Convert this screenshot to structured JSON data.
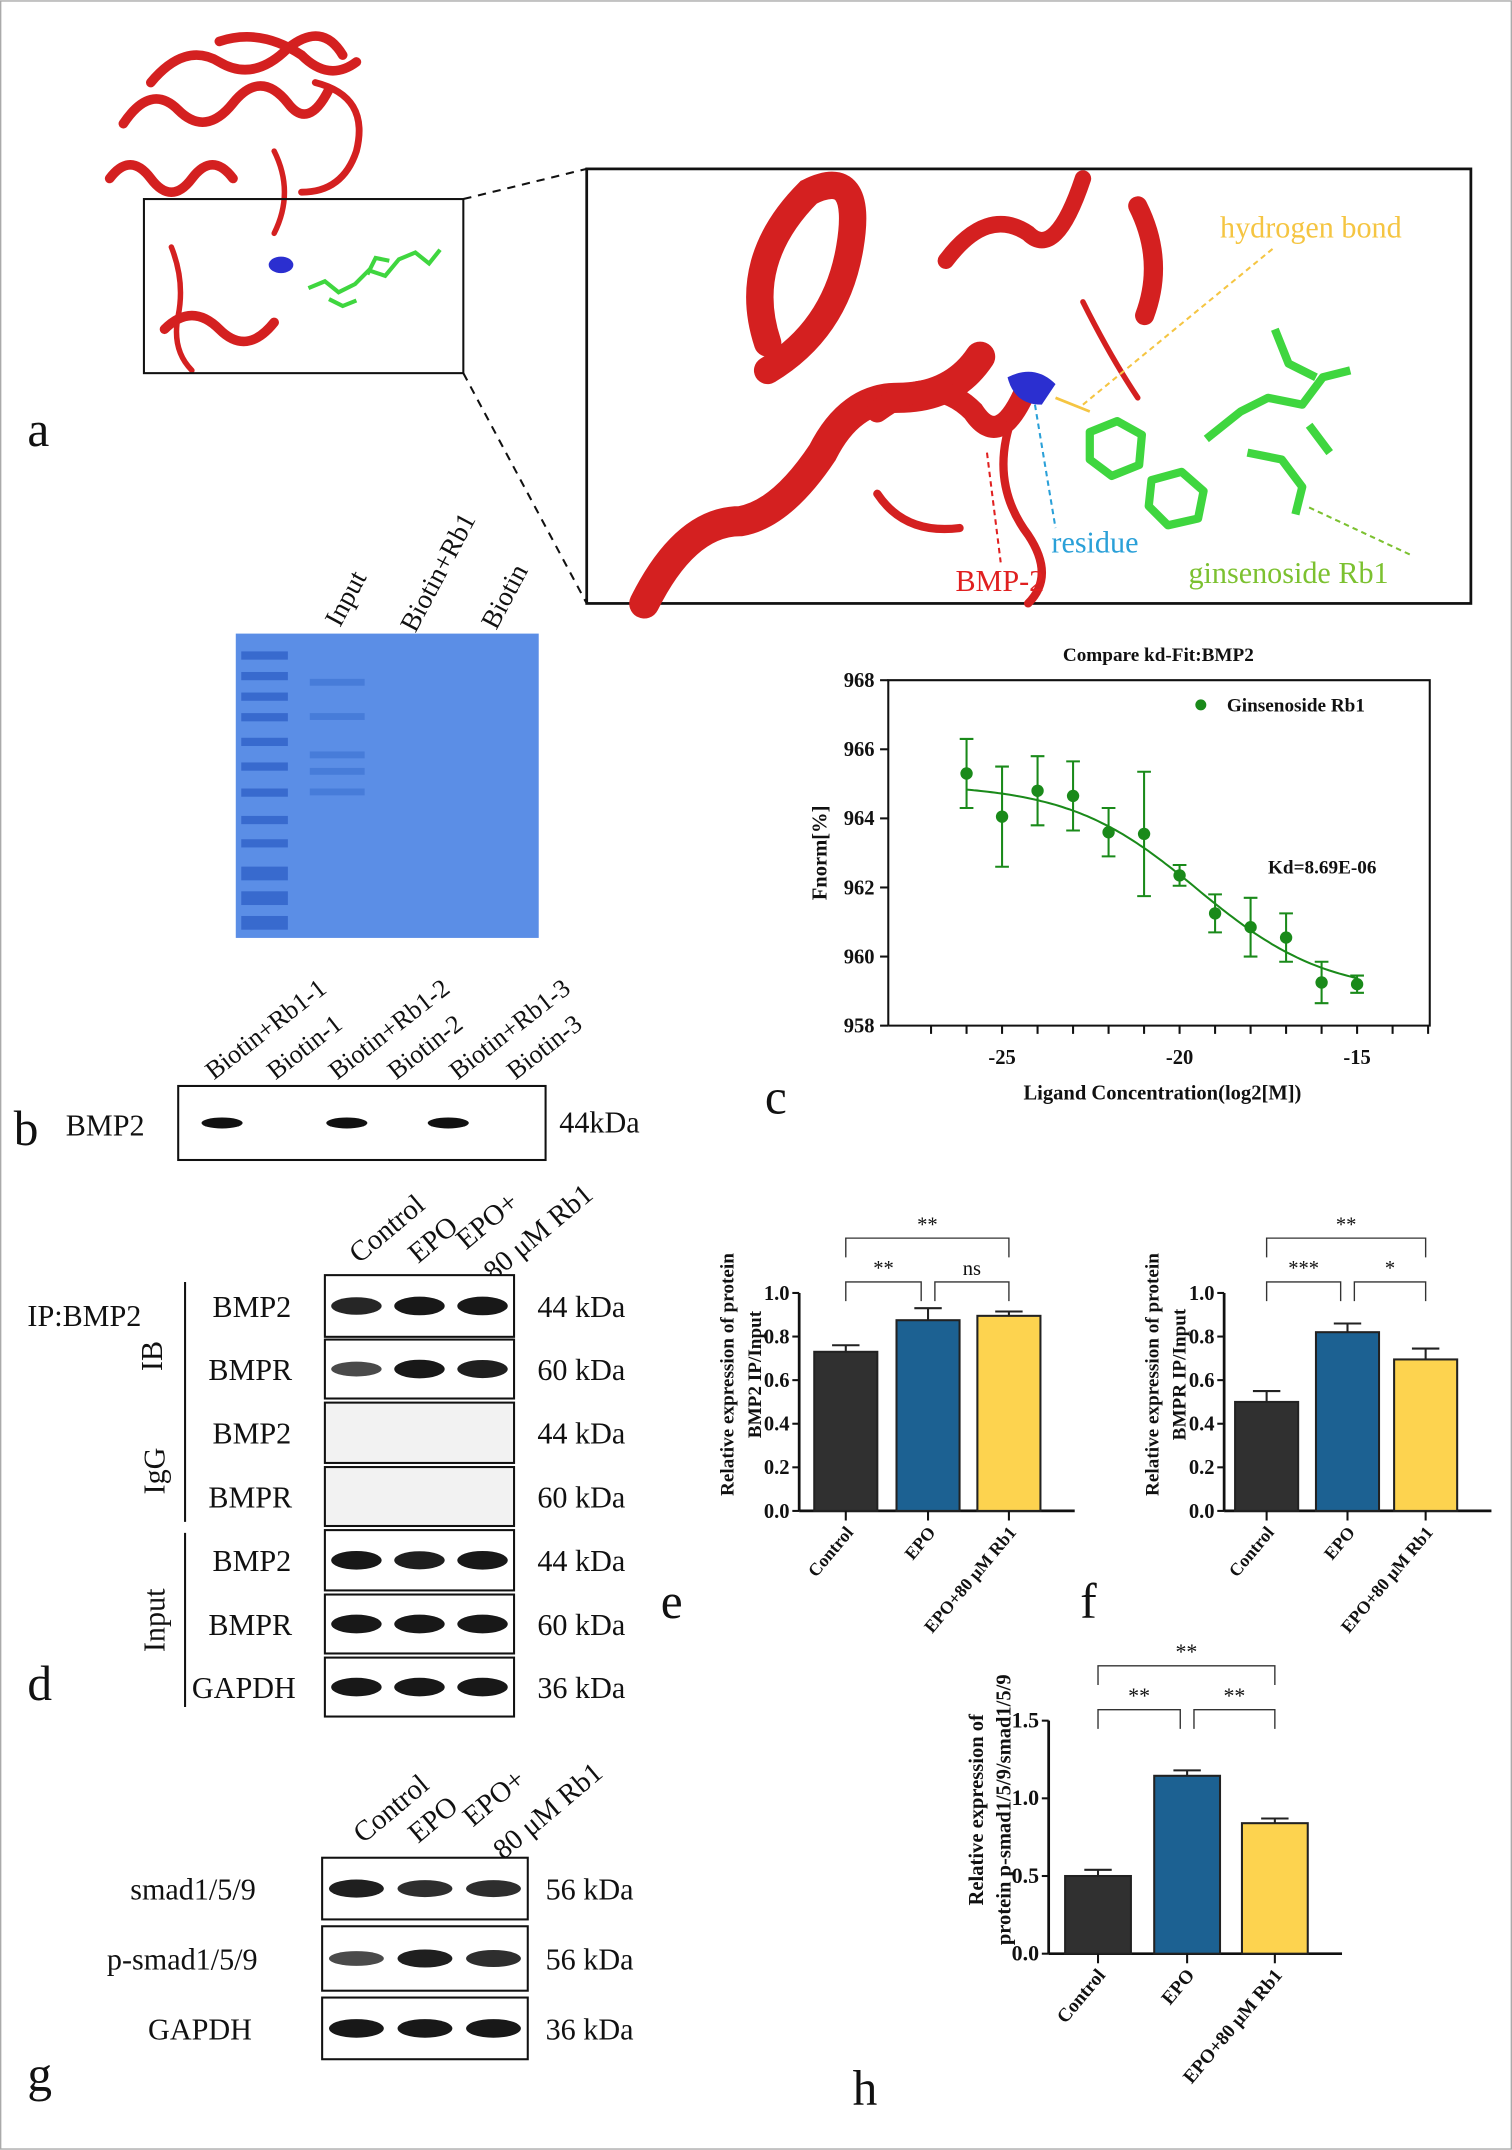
{
  "panels": {
    "a": "a",
    "b": "b",
    "c": "c",
    "d": "d",
    "e": "e",
    "f": "f",
    "g": "g",
    "h": "h"
  },
  "panel_a": {
    "labels": {
      "hbond": "hydrogen bond",
      "residue": "residue",
      "protein": "BMP-2",
      "ligand": "ginsenoside Rb1"
    },
    "colors": {
      "protein": "#d42020",
      "residue": "#2b2fd0",
      "ligand": "#3fd63f",
      "hbond": "#f5c542",
      "residue_label": "#2aa0d8",
      "ligand_label": "#7cc130"
    }
  },
  "gel": {
    "lanes": [
      "Input",
      "Biotin+Rb1",
      "Biotin"
    ],
    "color": "#5b8ee6"
  },
  "panel_b": {
    "lanes": [
      "Biotin+Rb1-1",
      "Biotin-1",
      "Biotin+Rb1-2",
      "Biotin-2",
      "Biotin+Rb1-3",
      "Biotin-3"
    ],
    "protein": "BMP2",
    "kda": "44kDa",
    "bands": [
      1,
      0,
      1,
      0,
      1,
      0
    ]
  },
  "panel_d": {
    "lanes": [
      "Control",
      "EPO",
      "EPO+",
      "80 μM Rb1"
    ],
    "groups": {
      "ip": "IP:BMP2",
      "ib": "IB",
      "igg": "IgG",
      "input": "Input"
    },
    "rows": [
      {
        "protein": "BMP2",
        "kda": "44 kDa",
        "bands": [
          0.85,
          0.95,
          0.95
        ]
      },
      {
        "protein": "BMPR",
        "kda": "60 kDa",
        "bands": [
          0.6,
          0.95,
          0.9
        ]
      },
      {
        "protein": "BMP2",
        "kda": "44 kDa",
        "bands": [
          0,
          0,
          0
        ]
      },
      {
        "protein": "BMPR",
        "kda": "60 kDa",
        "bands": [
          0,
          0,
          0
        ]
      },
      {
        "protein": "BMP2",
        "kda": "44 kDa",
        "bands": [
          0.95,
          0.9,
          0.95
        ]
      },
      {
        "protein": "BMPR",
        "kda": "60 kDa",
        "bands": [
          0.95,
          0.95,
          0.95
        ]
      },
      {
        "protein": "GAPDH",
        "kda": "36 kDa",
        "bands": [
          0.95,
          0.95,
          0.95
        ]
      }
    ]
  },
  "panel_g": {
    "lanes": [
      "Control",
      "EPO",
      "EPO+",
      "80 μM Rb1"
    ],
    "rows": [
      {
        "protein": "smad1/5/9",
        "kda": "56 kDa",
        "bands": [
          0.9,
          0.8,
          0.8
        ]
      },
      {
        "protein": "p-smad1/5/9",
        "kda": "56 kDa",
        "bands": [
          0.6,
          0.9,
          0.8
        ]
      },
      {
        "protein": "GAPDH",
        "kda": "36 kDa",
        "bands": [
          0.95,
          0.95,
          0.95
        ]
      }
    ]
  },
  "chart_data": [
    {
      "id": "c",
      "type": "scatter",
      "title": "Compare kd-Fit:BMP2",
      "xlabel": "Ligand Concentration(log2[M])",
      "ylabel": "Fnorm[%]",
      "xlim": [
        -28,
        -13
      ],
      "ylim": [
        958,
        968
      ],
      "xticks": [
        -25,
        -20,
        -15
      ],
      "yticks": [
        958,
        960,
        962,
        964,
        966,
        968
      ],
      "legend": "top-right",
      "annotation": "Kd=8.69E-06",
      "color": "#1a8a1a",
      "series": [
        {
          "name": "Ginsenoside Rb1",
          "x": [
            -26,
            -25,
            -24,
            -23,
            -22,
            -21,
            -20,
            -19,
            -18,
            -17,
            -16,
            -15
          ],
          "y": [
            965.3,
            964.05,
            964.8,
            964.65,
            963.6,
            963.55,
            962.35,
            961.25,
            960.85,
            960.55,
            959.25,
            959.2
          ],
          "err": [
            1.0,
            1.45,
            1.0,
            1.0,
            0.7,
            1.8,
            0.3,
            0.55,
            0.85,
            0.7,
            0.6,
            0.25
          ]
        }
      ],
      "fit": {
        "top": 965.0,
        "bottom": 958.9,
        "mid": -19.5,
        "slope": 0.55
      }
    },
    {
      "id": "e",
      "type": "bar",
      "ylabel": [
        "Relative expression of  protein",
        "BMP2 IP/Input"
      ],
      "categories": [
        "Control",
        "EPO",
        "EPO+80 μM Rb1"
      ],
      "values": [
        0.73,
        0.875,
        0.895
      ],
      "err": [
        0.03,
        0.055,
        0.02
      ],
      "ylim": [
        0,
        1.0
      ],
      "yticks": [
        "0.0",
        "0.2",
        "0.4",
        "0.6",
        "0.8",
        "1.0"
      ],
      "colors": [
        "#303030",
        "#1c6192",
        "#fdd34f"
      ],
      "sig": [
        {
          "a": 0,
          "b": 1,
          "label": "**"
        },
        {
          "a": 1,
          "b": 2,
          "label": "ns"
        },
        {
          "a": 0,
          "b": 2,
          "label": "**"
        }
      ]
    },
    {
      "id": "f",
      "type": "bar",
      "ylabel": [
        "Relative expression of protein",
        "BMPR IP/Input"
      ],
      "categories": [
        "Control",
        "EPO",
        "EPO+80 μM Rb1"
      ],
      "values": [
        0.5,
        0.82,
        0.695
      ],
      "err": [
        0.05,
        0.04,
        0.05
      ],
      "ylim": [
        0,
        1.0
      ],
      "yticks": [
        "0.0",
        "0.2",
        "0.4",
        "0.6",
        "0.8",
        "1.0"
      ],
      "colors": [
        "#303030",
        "#1c6192",
        "#fdd34f"
      ],
      "sig": [
        {
          "a": 0,
          "b": 1,
          "label": "***"
        },
        {
          "a": 1,
          "b": 2,
          "label": "*"
        },
        {
          "a": 0,
          "b": 2,
          "label": "**"
        }
      ]
    },
    {
      "id": "h",
      "type": "bar",
      "ylabel": [
        "Relative expression of",
        "protein p-smad1/5/9/smad1/5/9"
      ],
      "categories": [
        "Control",
        "EPO",
        "EPO+80  μM Rb1"
      ],
      "values": [
        0.5,
        1.145,
        0.84
      ],
      "err": [
        0.04,
        0.035,
        0.03
      ],
      "ylim": [
        0,
        1.5
      ],
      "yticks": [
        "0.0",
        "0.5",
        "1.0",
        "1.5"
      ],
      "colors": [
        "#303030",
        "#1c6192",
        "#fdd34f"
      ],
      "sig": [
        {
          "a": 0,
          "b": 1,
          "label": "**"
        },
        {
          "a": 1,
          "b": 2,
          "label": "**"
        },
        {
          "a": 0,
          "b": 2,
          "label": "**"
        }
      ]
    }
  ]
}
